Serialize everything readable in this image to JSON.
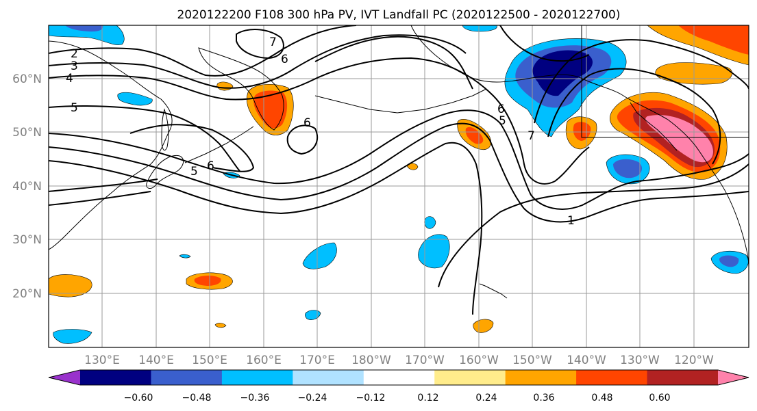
{
  "title": "2020122200 F108 300 hPa PV, IVT Landfall PC (2020122500 - 2020122700)",
  "lat_labels": [
    "60°N",
    "50°N",
    "40°N",
    "30°N",
    "20°N"
  ],
  "lon_labels": [
    "130°E",
    "140°E",
    "150°E",
    "160°E",
    "170°E",
    "180°W",
    "170°W",
    "160°W",
    "150°W",
    "140°W",
    "130°W",
    "120°W"
  ],
  "contour_labels": [
    "1",
    "2",
    "3",
    "4",
    "5",
    "5",
    "5",
    "6",
    "6",
    "6",
    "6",
    "7",
    "7"
  ],
  "colorbar": {
    "colors": [
      "#9932cc",
      "#000080",
      "#3a5fcd",
      "#00bfff",
      "#b0e2ff",
      "#ffffff",
      "#ffec8b",
      "#ffa500",
      "#ff4500",
      "#b22222",
      "#ff82ab"
    ],
    "tick_labels": [
      "−0.60",
      "−0.48",
      "−0.36",
      "−0.24",
      "−0.12",
      "0.12",
      "0.24",
      "0.36",
      "0.48",
      "0.60"
    ]
  }
}
